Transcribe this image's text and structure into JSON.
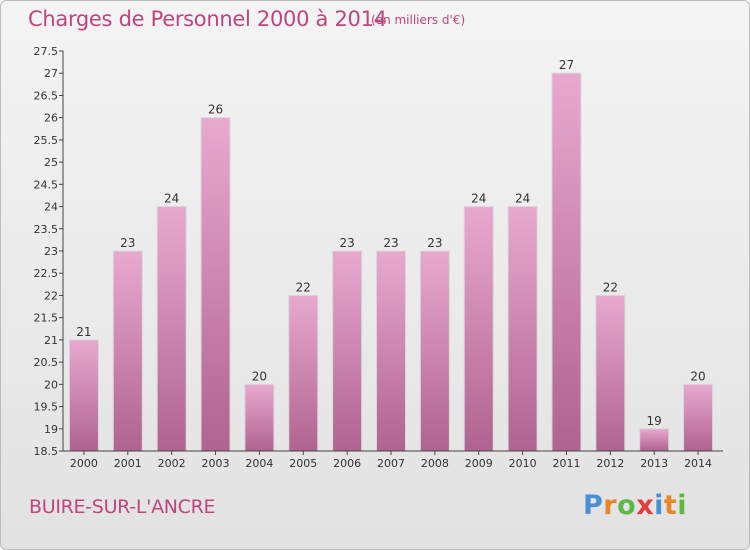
{
  "title": "Charges de Personnel 2000 à 2014",
  "subtitle": "(en milliers d'€)",
  "place": "BUIRE-SUR-L'ANCRE",
  "logo": {
    "letters": [
      "P",
      "r",
      "o",
      "x",
      "i",
      "t",
      "i"
    ],
    "colors": [
      "#4a8fd6",
      "#e8862a",
      "#5cb847",
      "#e23c3c",
      "#4a8fd6",
      "#e8862a",
      "#5cb847"
    ]
  },
  "colors": {
    "bar_light": "#e8a9cf",
    "bar_dark": "#b06390",
    "text": "#c0457e",
    "axis": "#444444"
  },
  "chart_data": {
    "type": "bar",
    "categories": [
      "2000",
      "2001",
      "2002",
      "2003",
      "2004",
      "2005",
      "2006",
      "2007",
      "2008",
      "2009",
      "2010",
      "2011",
      "2012",
      "2013",
      "2014"
    ],
    "values": [
      21,
      23,
      24,
      26,
      20,
      22,
      23,
      23,
      23,
      24,
      24,
      27,
      22,
      19,
      20
    ],
    "ylim": [
      18.5,
      27.5
    ],
    "yticks": [
      "18.5",
      "19",
      "19.5",
      "20",
      "20.5",
      "21",
      "21.5",
      "22",
      "22.5",
      "23",
      "23.5",
      "24",
      "24.5",
      "25",
      "25.5",
      "26",
      "26.5",
      "27",
      "27.5"
    ],
    "grid": false
  }
}
